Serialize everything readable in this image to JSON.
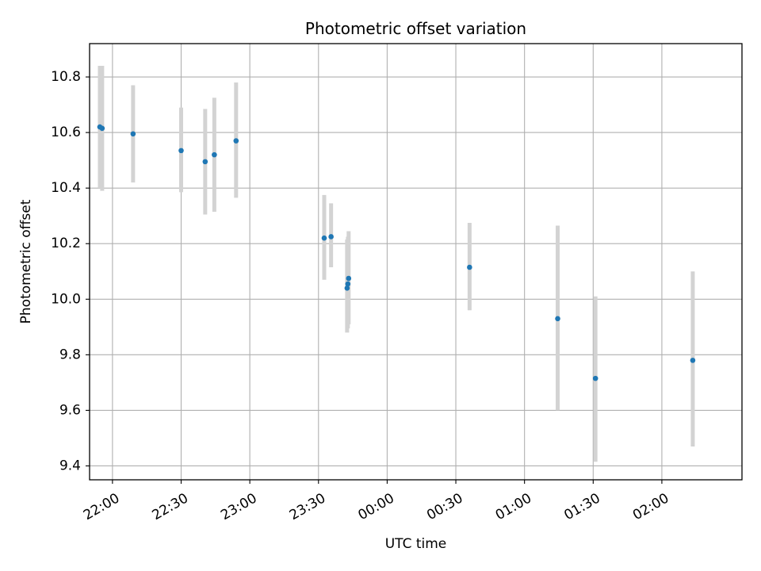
{
  "chart_data": {
    "type": "scatter",
    "title": "Photometric offset variation",
    "xlabel": "UTC time",
    "ylabel": "Photometric offset",
    "grid": true,
    "x_axis": {
      "type": "time",
      "range": [
        "21:50",
        "02:35"
      ],
      "ticks": [
        {
          "time": "22:00",
          "label": "22:00"
        },
        {
          "time": "22:30",
          "label": "22:30"
        },
        {
          "time": "23:00",
          "label": "23:00"
        },
        {
          "time": "23:30",
          "label": "23:30"
        },
        {
          "time": "00:00",
          "label": "00:00"
        },
        {
          "time": "00:30",
          "label": "00:30"
        },
        {
          "time": "01:00",
          "label": "01:00"
        },
        {
          "time": "01:30",
          "label": "01:30"
        },
        {
          "time": "02:00",
          "label": "02:00"
        }
      ]
    },
    "y_axis": {
      "range": [
        9.35,
        10.92
      ],
      "ticks": [
        {
          "value": 9.4,
          "label": "9.4"
        },
        {
          "value": 9.6,
          "label": "9.6"
        },
        {
          "value": 9.8,
          "label": "9.8"
        },
        {
          "value": 10.0,
          "label": "10.0"
        },
        {
          "value": 10.2,
          "label": "10.2"
        },
        {
          "value": 10.4,
          "label": "10.4"
        },
        {
          "value": 10.6,
          "label": "10.6"
        },
        {
          "value": 10.8,
          "label": "10.8"
        }
      ]
    },
    "point_color": "#1f77b4",
    "errorbar_color": "#d3d3d3",
    "points": [
      {
        "time": "21:54:30",
        "y": 10.62,
        "err_low": 10.4,
        "err_high": 10.84
      },
      {
        "time": "21:55:30",
        "y": 10.615,
        "err_low": 10.39,
        "err_high": 10.84
      },
      {
        "time": "22:09:00",
        "y": 10.595,
        "err_low": 10.42,
        "err_high": 10.77
      },
      {
        "time": "22:30:00",
        "y": 10.535,
        "err_low": 10.385,
        "err_high": 10.69
      },
      {
        "time": "22:40:30",
        "y": 10.495,
        "err_low": 10.305,
        "err_high": 10.685
      },
      {
        "time": "22:44:30",
        "y": 10.52,
        "err_low": 10.315,
        "err_high": 10.725
      },
      {
        "time": "22:54:00",
        "y": 10.57,
        "err_low": 10.365,
        "err_high": 10.78
      },
      {
        "time": "23:32:30",
        "y": 10.22,
        "err_low": 10.07,
        "err_high": 10.375
      },
      {
        "time": "23:35:30",
        "y": 10.225,
        "err_low": 10.115,
        "err_high": 10.345
      },
      {
        "time": "23:42:30",
        "y": 10.04,
        "err_low": 9.88,
        "err_high": 10.215
      },
      {
        "time": "23:42:50",
        "y": 10.055,
        "err_low": 9.895,
        "err_high": 10.225
      },
      {
        "time": "23:43:10",
        "y": 10.075,
        "err_low": 9.91,
        "err_high": 10.245
      },
      {
        "time": "00:36:00",
        "y": 10.115,
        "err_low": 9.96,
        "err_high": 10.275
      },
      {
        "time": "01:14:30",
        "y": 9.93,
        "err_low": 9.6,
        "err_high": 10.265
      },
      {
        "time": "01:31:00",
        "y": 9.715,
        "err_low": 9.415,
        "err_high": 10.01
      },
      {
        "time": "02:13:30",
        "y": 9.78,
        "err_low": 9.47,
        "err_high": 10.1
      }
    ]
  }
}
